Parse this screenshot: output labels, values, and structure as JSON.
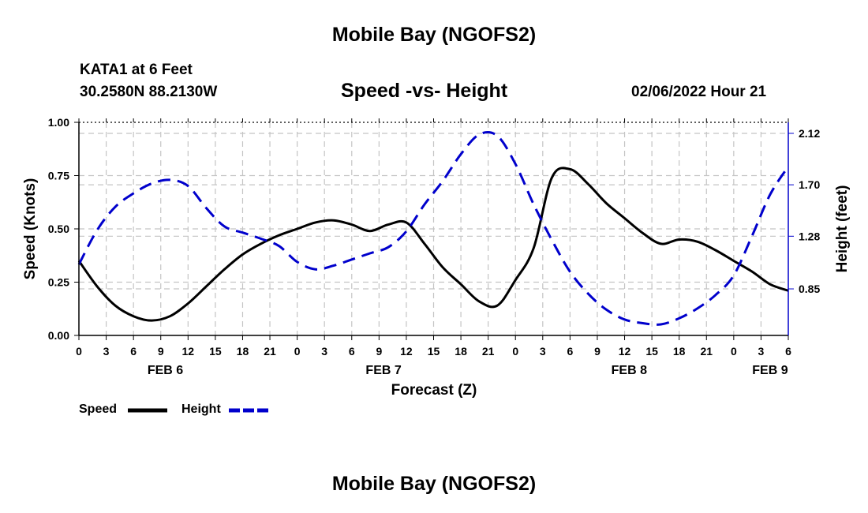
{
  "header": {
    "title": "Mobile Bay (NGOFS2)",
    "station": "KATA1 at 6 Feet",
    "coords": "30.2580N  88.2130W",
    "subtitle": "Speed -vs- Height",
    "datetime": "02/06/2022 Hour 21"
  },
  "footer": {
    "title": "Mobile Bay (NGOFS2)"
  },
  "legend": {
    "speed_label": "Speed",
    "height_label": "Height"
  },
  "chart_data": {
    "type": "line",
    "xlabel": "Forecast (Z)",
    "ylabel": "Speed (Knots)",
    "y2label": "Height (feet)",
    "x_range_hours": [
      0,
      78
    ],
    "x_tick_labels": [
      "0",
      "3",
      "6",
      "9",
      "12",
      "15",
      "18",
      "21",
      "0",
      "3",
      "6",
      "9",
      "12",
      "15",
      "18",
      "21",
      "0",
      "3",
      "6",
      "9",
      "12",
      "15",
      "18",
      "21",
      "0",
      "3",
      "6"
    ],
    "date_labels": [
      {
        "label": "FEB 6",
        "hour": 9.5
      },
      {
        "label": "FEB 7",
        "hour": 33.5
      },
      {
        "label": "FEB 8",
        "hour": 60.5
      },
      {
        "label": "FEB 9",
        "hour": 76
      }
    ],
    "ylim": [
      0,
      1.0
    ],
    "y_ticks": [
      "0.00",
      "0.25",
      "0.50",
      "0.75",
      "1.00"
    ],
    "y2lim": [
      0.47,
      2.21
    ],
    "y2_ticks": [
      "0.85",
      "1.28",
      "1.70",
      "2.12"
    ],
    "grid": true,
    "legend_position": "bottom-left",
    "colors": {
      "speed": "#000000",
      "height": "#0000cc"
    },
    "series": [
      {
        "name": "Speed",
        "axis": "left",
        "style": "solid",
        "x": [
          0,
          2,
          4,
          6,
          8,
          10,
          12,
          14,
          16,
          18,
          20,
          22,
          24,
          26,
          28,
          30,
          32,
          34,
          36,
          38,
          40,
          42,
          44,
          46,
          48,
          50,
          52,
          54,
          56,
          58,
          60,
          62,
          64,
          66,
          68,
          70,
          72,
          74,
          76,
          78
        ],
        "y": [
          0.35,
          0.23,
          0.14,
          0.09,
          0.07,
          0.09,
          0.15,
          0.23,
          0.31,
          0.38,
          0.43,
          0.47,
          0.5,
          0.53,
          0.54,
          0.52,
          0.49,
          0.52,
          0.53,
          0.43,
          0.32,
          0.24,
          0.16,
          0.14,
          0.26,
          0.41,
          0.74,
          0.78,
          0.71,
          0.62,
          0.55,
          0.48,
          0.43,
          0.45,
          0.44,
          0.4,
          0.35,
          0.3,
          0.24,
          0.21
        ]
      },
      {
        "name": "Height",
        "axis": "right",
        "style": "dashed",
        "x": [
          0,
          2,
          4,
          6,
          8,
          10,
          12,
          14,
          16,
          18,
          20,
          22,
          24,
          26,
          28,
          30,
          32,
          34,
          36,
          38,
          40,
          42,
          44,
          46,
          48,
          50,
          52,
          54,
          56,
          58,
          60,
          62,
          64,
          66,
          68,
          70,
          72,
          74,
          76,
          78
        ],
        "y": [
          1.05,
          1.33,
          1.52,
          1.63,
          1.71,
          1.74,
          1.69,
          1.51,
          1.36,
          1.31,
          1.26,
          1.2,
          1.07,
          1.01,
          1.04,
          1.09,
          1.14,
          1.19,
          1.32,
          1.54,
          1.73,
          1.95,
          2.11,
          2.1,
          1.87,
          1.54,
          1.25,
          0.99,
          0.81,
          0.68,
          0.6,
          0.57,
          0.56,
          0.61,
          0.69,
          0.8,
          0.96,
          1.28,
          1.62,
          1.85
        ]
      }
    ]
  }
}
